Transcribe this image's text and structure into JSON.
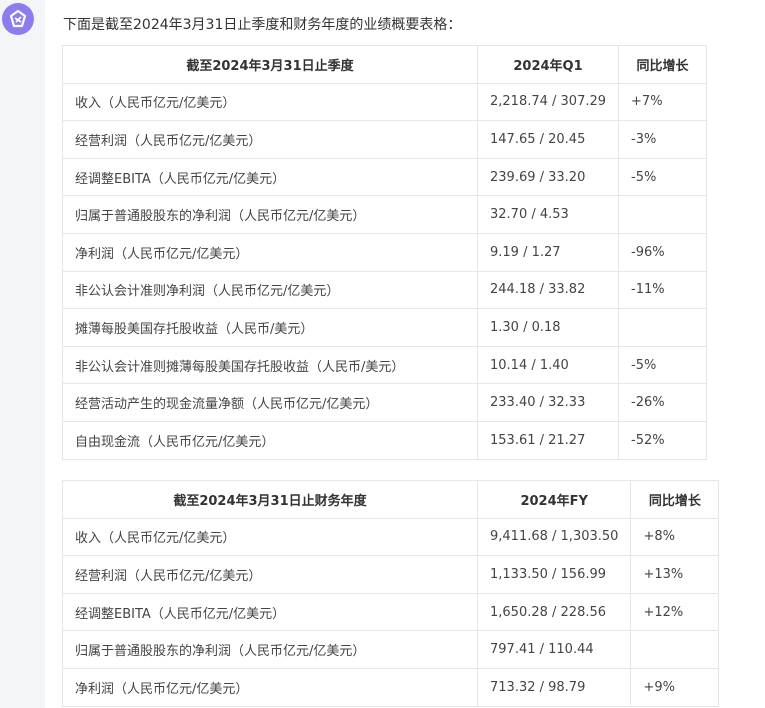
{
  "avatar": {
    "icon": "assistant-logo-icon",
    "color": "#8b7cf0"
  },
  "intro": "下面是截至2024年3月31日止季度和财务年度的业绩概要表格：",
  "tables": [
    {
      "headers": [
        "截至2024年3月31日止季度",
        "2024年Q1",
        "同比增长"
      ],
      "rows": [
        [
          "收入（人民币亿元/亿美元）",
          "2,218.74 / 307.29",
          "+7%"
        ],
        [
          "经营利润（人民币亿元/亿美元）",
          "147.65 / 20.45",
          "-3%"
        ],
        [
          "经调整EBITA（人民币亿元/亿美元）",
          "239.69 / 33.20",
          "-5%"
        ],
        [
          "归属于普通股股东的净利润（人民币亿元/亿美元）",
          "32.70 / 4.53",
          ""
        ],
        [
          "净利润（人民币亿元/亿美元）",
          "9.19 / 1.27",
          "-96%"
        ],
        [
          "非公认会计准则净利润（人民币亿元/亿美元）",
          "244.18 / 33.82",
          "-11%"
        ],
        [
          "摊薄每股美国存托股收益（人民币/美元）",
          "1.30 / 0.18",
          ""
        ],
        [
          "非公认会计准则摊薄每股美国存托股收益（人民币/美元）",
          "10.14 / 1.40",
          "-5%"
        ],
        [
          "经营活动产生的现金流量净额（人民币亿元/亿美元）",
          "233.40 / 32.33",
          "-26%"
        ],
        [
          "自由现金流（人民币亿元/亿美元）",
          "153.61 / 21.27",
          "-52%"
        ]
      ]
    },
    {
      "headers": [
        "截至2024年3月31日止财务年度",
        "2024年FY",
        "同比增长"
      ],
      "rows": [
        [
          "收入（人民币亿元/亿美元）",
          "9,411.68 / 1,303.50",
          "+8%"
        ],
        [
          "经营利润（人民币亿元/亿美元）",
          "1,133.50 / 156.99",
          "+13%"
        ],
        [
          "经调整EBITA（人民币亿元/亿美元）",
          "1,650.28 / 228.56",
          "+12%"
        ],
        [
          "归属于普通股股东的净利润（人民币亿元/亿美元）",
          "797.41 / 110.44",
          ""
        ],
        [
          "净利润（人民币亿元/亿美元）",
          "713.32 / 98.79",
          "+9%"
        ]
      ]
    }
  ]
}
